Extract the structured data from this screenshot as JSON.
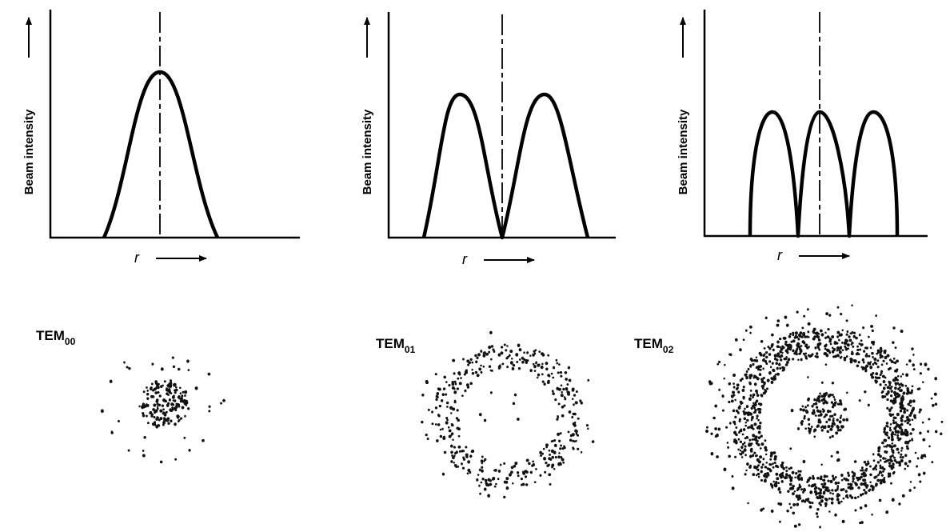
{
  "panels": [
    {
      "y_label": "Beam intensity",
      "x_label": "r",
      "mode": {
        "name": "TEM",
        "subscript": "00"
      }
    },
    {
      "y_label": "Beam intensity",
      "x_label": "r",
      "mode": {
        "name": "TEM",
        "subscript": "01"
      }
    },
    {
      "y_label": "Beam intensity",
      "x_label": "r",
      "mode": {
        "name": "TEM",
        "subscript": "02"
      }
    }
  ]
}
